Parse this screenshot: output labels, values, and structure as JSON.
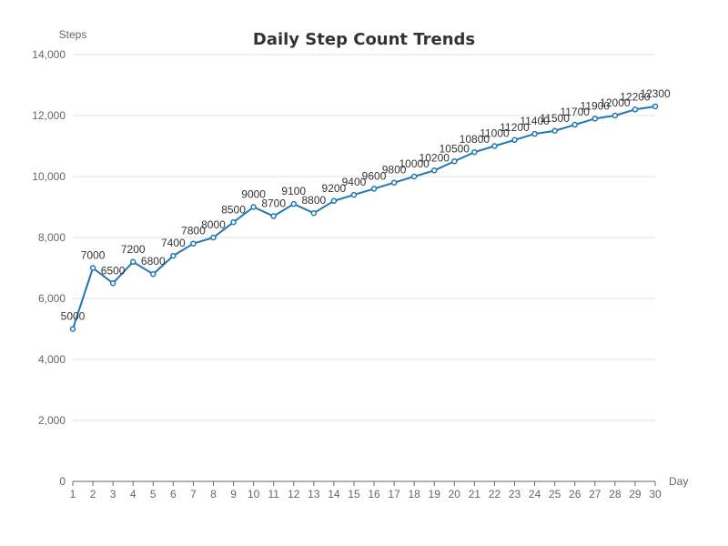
{
  "chart_data": {
    "type": "line",
    "title": "Daily Step Count Trends",
    "xlabel": "Day",
    "ylabel": "Steps",
    "categories": [
      "1",
      "2",
      "3",
      "4",
      "5",
      "6",
      "7",
      "8",
      "9",
      "10",
      "11",
      "12",
      "13",
      "14",
      "15",
      "16",
      "17",
      "18",
      "19",
      "20",
      "21",
      "22",
      "23",
      "24",
      "25",
      "26",
      "27",
      "28",
      "29",
      "30"
    ],
    "values": [
      5000,
      7000,
      6500,
      7200,
      6800,
      7400,
      7800,
      8000,
      8500,
      9000,
      8700,
      9100,
      8800,
      9200,
      9400,
      9600,
      9800,
      10000,
      10200,
      10500,
      10800,
      11000,
      11200,
      11400,
      11500,
      11700,
      11900,
      12000,
      12200,
      12300
    ],
    "ylim": [
      0,
      14000
    ],
    "yticks": [
      0,
      2000,
      4000,
      6000,
      8000,
      10000,
      12000,
      14000
    ],
    "ytick_labels": [
      "0",
      "2,000",
      "4,000",
      "6,000",
      "8,000",
      "10,000",
      "12,000",
      "14,000"
    ],
    "grid": true,
    "colors": {
      "line": "#1f77b4",
      "marker_fill": "#ffffff",
      "grid": "#e0e0e0",
      "axis": "#666666"
    }
  }
}
